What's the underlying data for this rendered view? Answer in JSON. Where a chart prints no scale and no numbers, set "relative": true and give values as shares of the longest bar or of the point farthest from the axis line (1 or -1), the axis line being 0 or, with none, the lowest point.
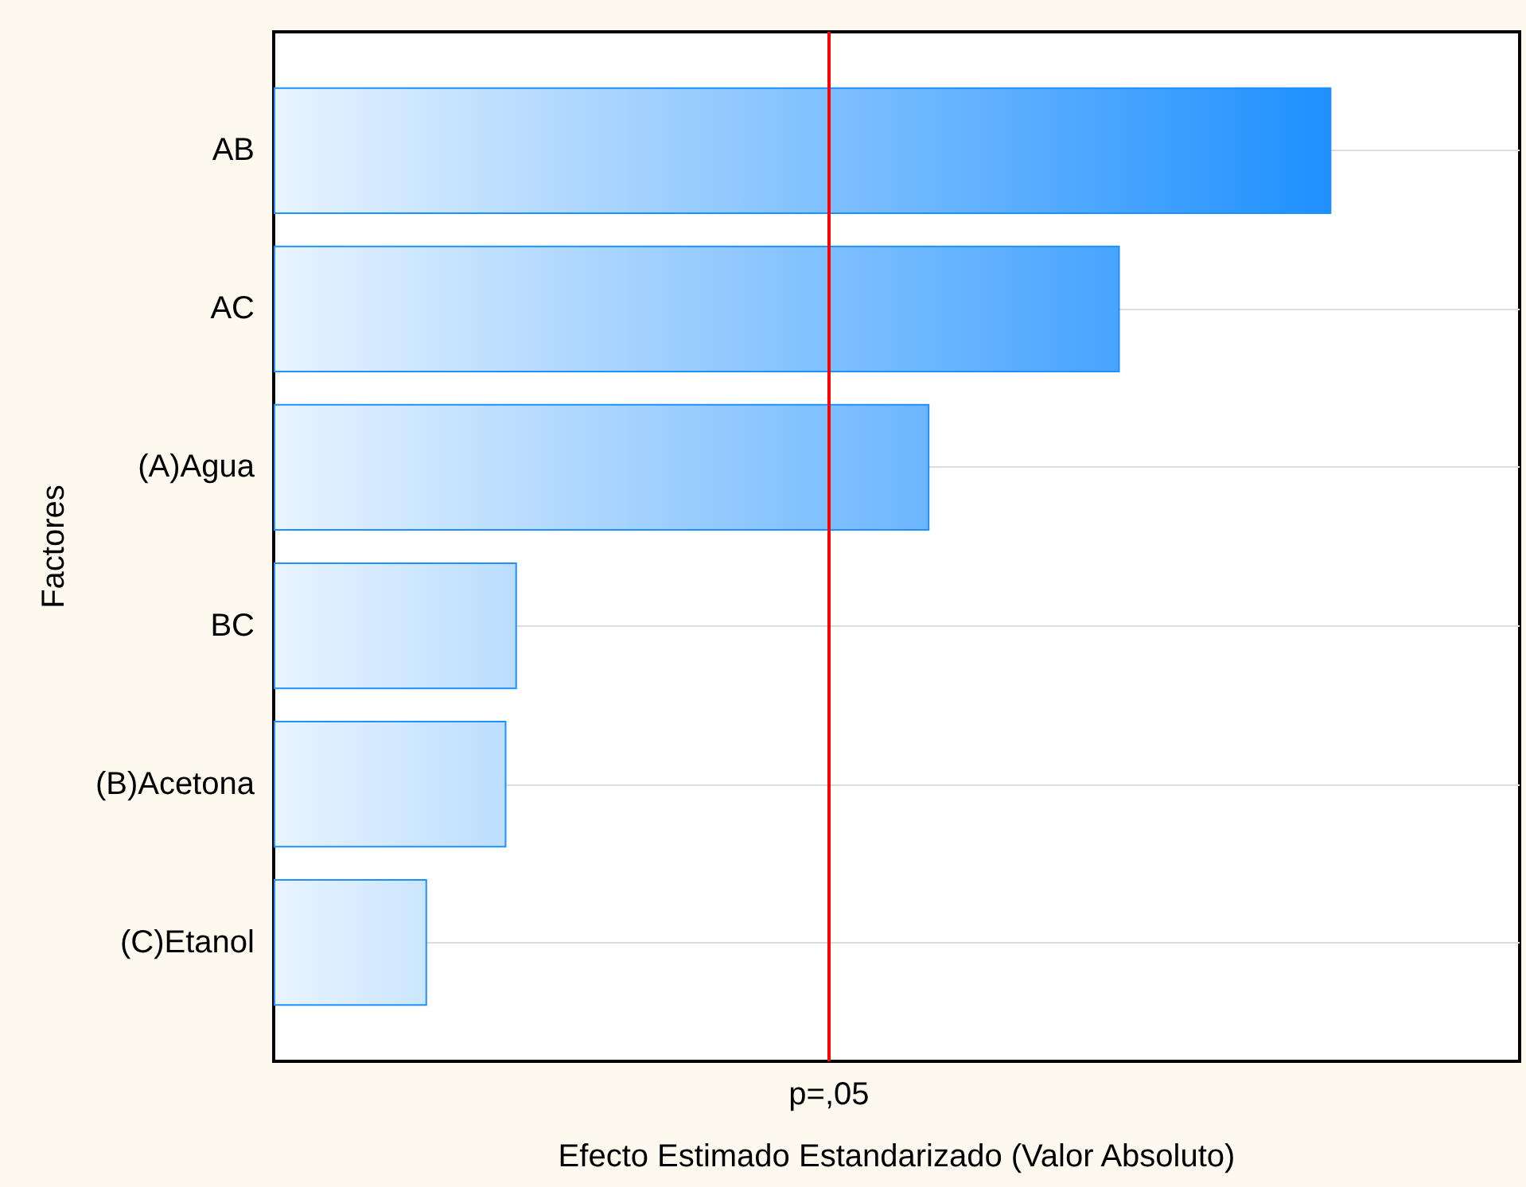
{
  "chart_data": {
    "type": "bar",
    "orientation": "horizontal",
    "relative": true,
    "xlabel": "Efecto Estimado Estandarizado (Valor Absoluto)",
    "ylabel": "Factores",
    "categories": [
      "AB",
      "AC",
      "(A)Agua",
      "BC",
      "(B)Acetona",
      "(C)Etanol"
    ],
    "values": [
      1,
      0.8,
      0.62,
      0.23,
      0.22,
      0.145
    ],
    "color": "#1e90ff",
    "ref_lines": [
      {
        "axis": "x",
        "value": 0.525,
        "label": "p=,05",
        "color": "#ff0000"
      }
    ],
    "grid": "y",
    "tick_labels": "y"
  }
}
